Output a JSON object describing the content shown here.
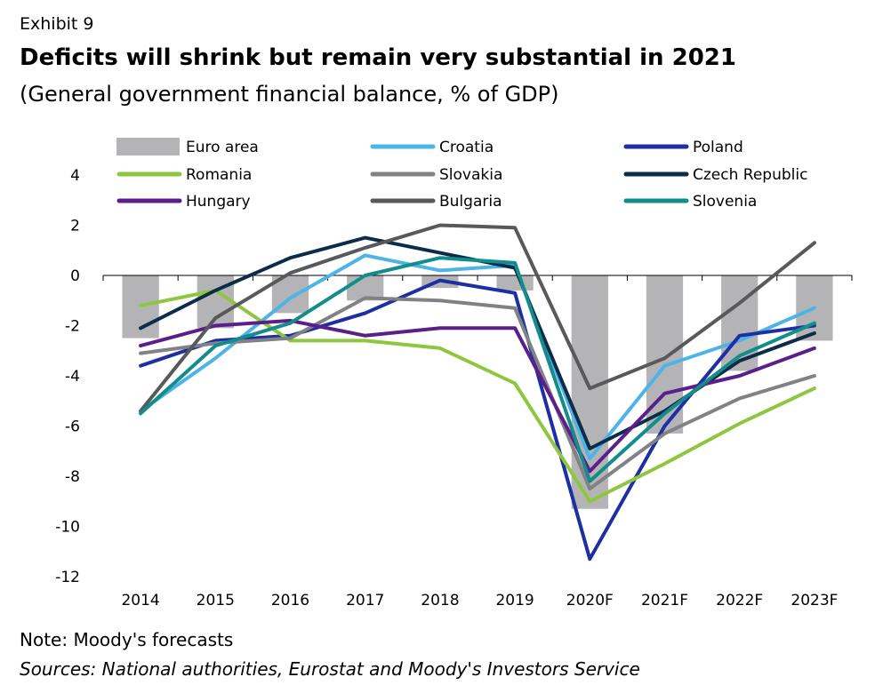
{
  "header": {
    "exhibit": "Exhibit 9",
    "title": "Deficits will shrink but remain very substantial in 2021",
    "subtitle": "(General government financial balance, % of GDP)"
  },
  "footer": {
    "note": "Note: Moody's forecasts",
    "sources": "Sources: National authorities, Eurostat and Moody's Investors Service"
  },
  "chart_data": {
    "type": "bar+line",
    "categories": [
      "2014",
      "2015",
      "2016",
      "2017",
      "2018",
      "2019",
      "2020F",
      "2021F",
      "2022F",
      "2023F"
    ],
    "ylim": [
      -12,
      4
    ],
    "yticks": [
      4,
      2,
      0,
      -2,
      -4,
      -6,
      -8,
      -10,
      -12
    ],
    "grid": false,
    "legend_position": "top",
    "bar_series": {
      "name": "Euro area",
      "color": "#b4b4b6",
      "values": [
        -2.5,
        -2.1,
        -1.5,
        -1.0,
        -0.5,
        -0.6,
        -9.3,
        -6.3,
        -3.8,
        -2.6
      ]
    },
    "series": [
      {
        "name": "Croatia",
        "color": "#4cb4e6",
        "values": [
          -5.4,
          -3.3,
          -0.9,
          0.8,
          0.2,
          0.4,
          -7.3,
          -3.6,
          -2.6,
          -1.3
        ]
      },
      {
        "name": "Poland",
        "color": "#1d2fa3",
        "values": [
          -3.6,
          -2.6,
          -2.4,
          -1.5,
          -0.2,
          -0.7,
          -11.3,
          -6.0,
          -2.4,
          -2.0
        ]
      },
      {
        "name": "Romania",
        "color": "#8dc63f",
        "values": [
          -1.2,
          -0.6,
          -2.6,
          -2.6,
          -2.9,
          -4.3,
          -9.0,
          -7.5,
          -5.9,
          -4.5
        ]
      },
      {
        "name": "Slovakia",
        "color": "#808285",
        "values": [
          -3.1,
          -2.7,
          -2.5,
          -0.9,
          -1.0,
          -1.3,
          -8.5,
          -6.3,
          -4.9,
          -4.0
        ]
      },
      {
        "name": "Czech Republic",
        "color": "#0d2c4a",
        "values": [
          -2.1,
          -0.6,
          0.7,
          1.5,
          0.9,
          0.3,
          -6.9,
          -5.4,
          -3.4,
          -2.3
        ]
      },
      {
        "name": "Hungary",
        "color": "#5b1f8a",
        "values": [
          -2.8,
          -2.0,
          -1.8,
          -2.4,
          -2.1,
          -2.1,
          -7.8,
          -4.7,
          -4.0,
          -2.9
        ]
      },
      {
        "name": "Bulgaria",
        "color": "#58595b",
        "values": [
          -5.4,
          -1.7,
          0.1,
          1.1,
          2.0,
          1.9,
          -4.5,
          -3.3,
          -1.1,
          1.3
        ]
      },
      {
        "name": "Slovenia",
        "color": "#138c8c",
        "values": [
          -5.5,
          -2.8,
          -1.9,
          0.0,
          0.7,
          0.5,
          -8.2,
          -5.5,
          -3.2,
          -1.9
        ]
      }
    ]
  }
}
